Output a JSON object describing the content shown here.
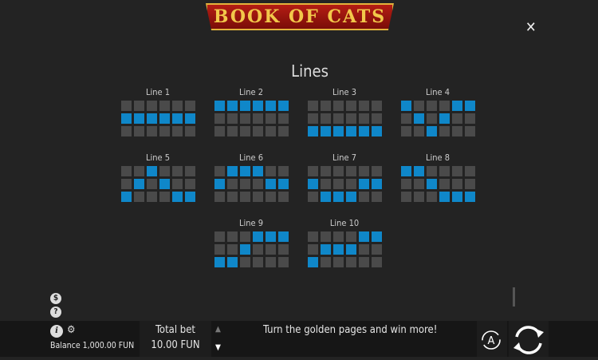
{
  "logo": "BOOK OF CATS",
  "title": "Lines",
  "lines": [
    {
      "label": "Line 1",
      "rows": [
        1,
        1,
        1,
        1,
        1,
        1
      ]
    },
    {
      "label": "Line 2",
      "rows": [
        0,
        0,
        0,
        0,
        0,
        0
      ]
    },
    {
      "label": "Line 3",
      "rows": [
        2,
        2,
        2,
        2,
        2,
        2
      ]
    },
    {
      "label": "Line 4",
      "rows": [
        0,
        1,
        2,
        1,
        0,
        0
      ]
    },
    {
      "label": "Line 5",
      "rows": [
        2,
        1,
        0,
        1,
        2,
        2
      ]
    },
    {
      "label": "Line 6",
      "rows": [
        1,
        0,
        0,
        0,
        1,
        1
      ]
    },
    {
      "label": "Line 7",
      "rows": [
        1,
        2,
        2,
        2,
        1,
        1
      ]
    },
    {
      "label": "Line 8",
      "rows": [
        0,
        0,
        1,
        2,
        2,
        2
      ]
    },
    {
      "label": "Line 9",
      "rows": [
        2,
        2,
        1,
        0,
        0,
        0
      ]
    },
    {
      "label": "Line 10",
      "rows": [
        2,
        1,
        1,
        1,
        0,
        0
      ]
    }
  ],
  "colors": {
    "active": "#0f87c9",
    "inactive": "#4a4a4a"
  },
  "footer": {
    "total_bet_label": "Total bet",
    "total_bet_value": "10.00 FUN",
    "message": "Turn the golden pages and win more!",
    "balance": "Balance 1,000.00 FUN",
    "autoplay_letter": "A"
  }
}
